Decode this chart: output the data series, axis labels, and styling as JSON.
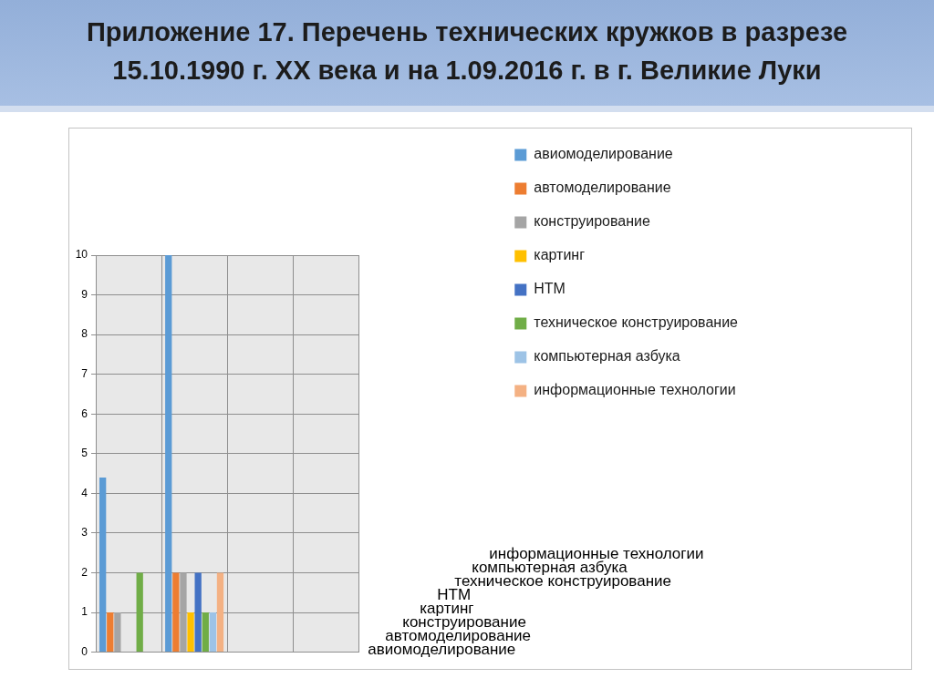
{
  "chart_data": {
    "type": "bar",
    "title": "Приложение 17. Перечень технических кружков в разрезе 15.10.1990 г. ХХ века и на 1.09.2016 г. в г. Великие Луки",
    "categories": [
      null,
      null,
      null,
      null
    ],
    "series": [
      {
        "name": "авиомоделирование",
        "color": "#5b9bd5",
        "values": [
          4.4,
          10,
          null,
          null
        ]
      },
      {
        "name": "автомоделирование",
        "color": "#ed7d31",
        "values": [
          1,
          2,
          null,
          null
        ]
      },
      {
        "name": "конструирование",
        "color": "#a5a5a5",
        "values": [
          1,
          2,
          null,
          null
        ]
      },
      {
        "name": "картинг",
        "color": "#ffc000",
        "values": [
          null,
          1,
          null,
          null
        ]
      },
      {
        "name": "НТМ",
        "color": "#4472c4",
        "values": [
          null,
          2,
          null,
          null
        ]
      },
      {
        "name": "техническое конструирование",
        "color": "#70ad47",
        "values": [
          2,
          1,
          null,
          null
        ]
      },
      {
        "name": "компьютерная азбука",
        "color": "#9dc3e6",
        "values": [
          0,
          1,
          null,
          null
        ]
      },
      {
        "name": "информационные технологии",
        "color": "#f4b183",
        "values": [
          0,
          2,
          null,
          null
        ]
      }
    ],
    "ylim": [
      0,
      10
    ],
    "yticks": [
      0,
      1,
      2,
      3,
      4,
      5,
      6,
      7,
      8,
      9,
      10
    ],
    "grid": true,
    "legend": "right"
  }
}
